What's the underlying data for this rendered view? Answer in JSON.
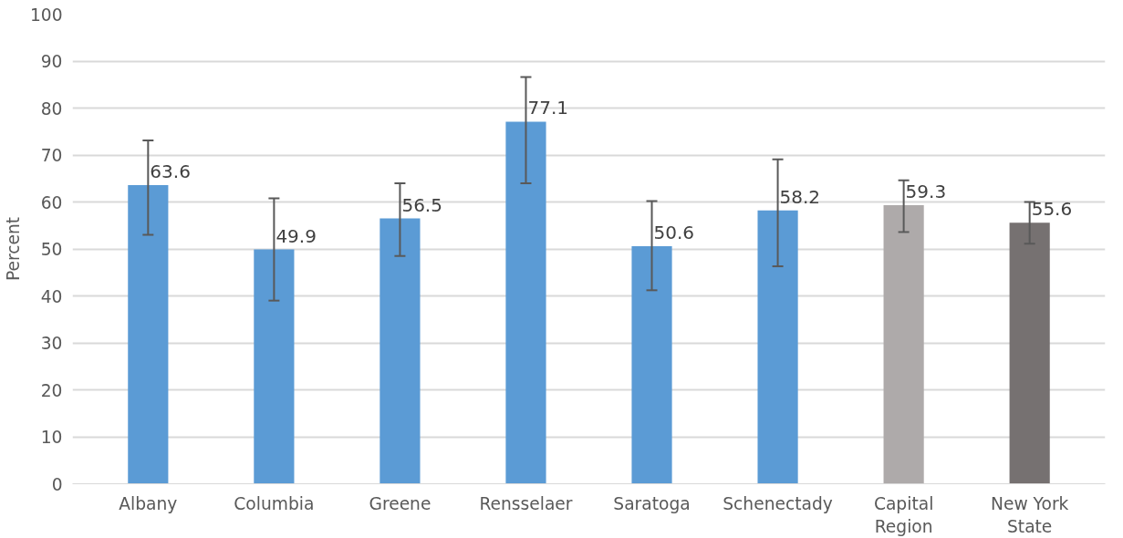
{
  "chart_data": {
    "type": "bar",
    "ylabel": "Percent",
    "categories": [
      "Albany",
      "Columbia",
      "Greene",
      "Rensselaer",
      "Saratoga",
      "Schenectady",
      "Capital\nRegion",
      "New York\nState"
    ],
    "values": [
      63.6,
      49.9,
      56.5,
      77.1,
      50.6,
      58.2,
      59.3,
      55.6
    ],
    "colors": [
      "#5b9bd5",
      "#5b9bd5",
      "#5b9bd5",
      "#5b9bd5",
      "#5b9bd5",
      "#5b9bd5",
      "#aeaaaa",
      "#767171"
    ],
    "errors": [
      [
        53.0,
        73.1
      ],
      [
        39.0,
        60.8
      ],
      [
        48.5,
        64.0
      ],
      [
        64.0,
        86.6
      ],
      [
        41.2,
        60.2
      ],
      [
        46.3,
        69.1
      ],
      [
        53.6,
        64.6
      ],
      [
        51.1,
        60.0
      ]
    ],
    "ylim": [
      0,
      100
    ],
    "yticks": [
      0,
      10,
      20,
      30,
      40,
      50,
      60,
      70,
      80,
      90,
      100
    ],
    "grid": "y",
    "data_labels": true
  }
}
